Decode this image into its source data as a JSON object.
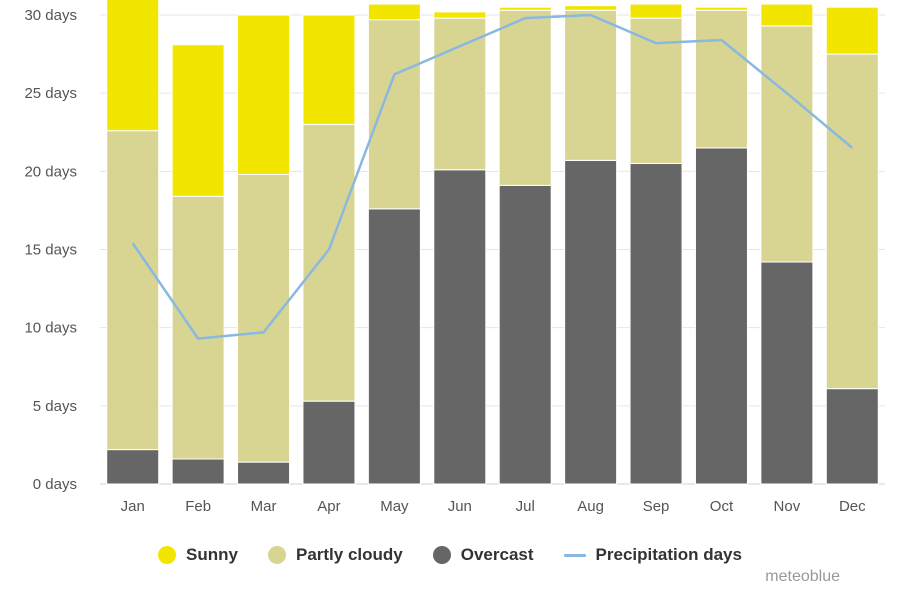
{
  "chart_data": {
    "type": "bar",
    "stacked": true,
    "categories": [
      "Jan",
      "Feb",
      "Mar",
      "Apr",
      "May",
      "Jun",
      "Jul",
      "Aug",
      "Sep",
      "Oct",
      "Nov",
      "Dec"
    ],
    "y_ticks": [
      "0 days",
      "5 days",
      "10 days",
      "15 days",
      "20 days",
      "25 days",
      "30 days"
    ],
    "ylim": [
      0,
      30
    ],
    "grid": true,
    "legend_position": "bottom-center",
    "series": [
      {
        "name": "Overcast",
        "kind": "bar",
        "color": "#666666",
        "values": [
          2.2,
          1.6,
          1.4,
          5.3,
          17.6,
          20.1,
          19.1,
          20.7,
          20.5,
          21.5,
          14.2,
          6.1
        ]
      },
      {
        "name": "Partly cloudy",
        "kind": "bar",
        "color": "#d8d593",
        "values": [
          20.4,
          16.8,
          18.4,
          17.7,
          12.1,
          9.7,
          11.2,
          9.6,
          9.3,
          8.8,
          15.1,
          21.4
        ]
      },
      {
        "name": "Sunny",
        "kind": "bar",
        "color": "#f2e600",
        "values": [
          8.4,
          9.7,
          10.2,
          7.0,
          1.0,
          0.4,
          0.2,
          0.3,
          0.9,
          0.2,
          1.4,
          3.0
        ]
      },
      {
        "name": "Precipitation days",
        "kind": "line",
        "color": "#8ab8e0",
        "values": [
          15.4,
          9.3,
          9.7,
          15.0,
          26.2,
          28.0,
          29.8,
          30.0,
          28.2,
          28.4,
          25.0,
          21.5
        ]
      }
    ]
  },
  "legend": [
    {
      "label": "Sunny",
      "color": "#f2e600",
      "shape": "dot"
    },
    {
      "label": "Partly cloudy",
      "color": "#d8d593",
      "shape": "dot"
    },
    {
      "label": "Overcast",
      "color": "#666666",
      "shape": "dot"
    },
    {
      "label": "Precipitation days",
      "color": "#8ab8e0",
      "shape": "line"
    }
  ],
  "credit": "meteoblue"
}
